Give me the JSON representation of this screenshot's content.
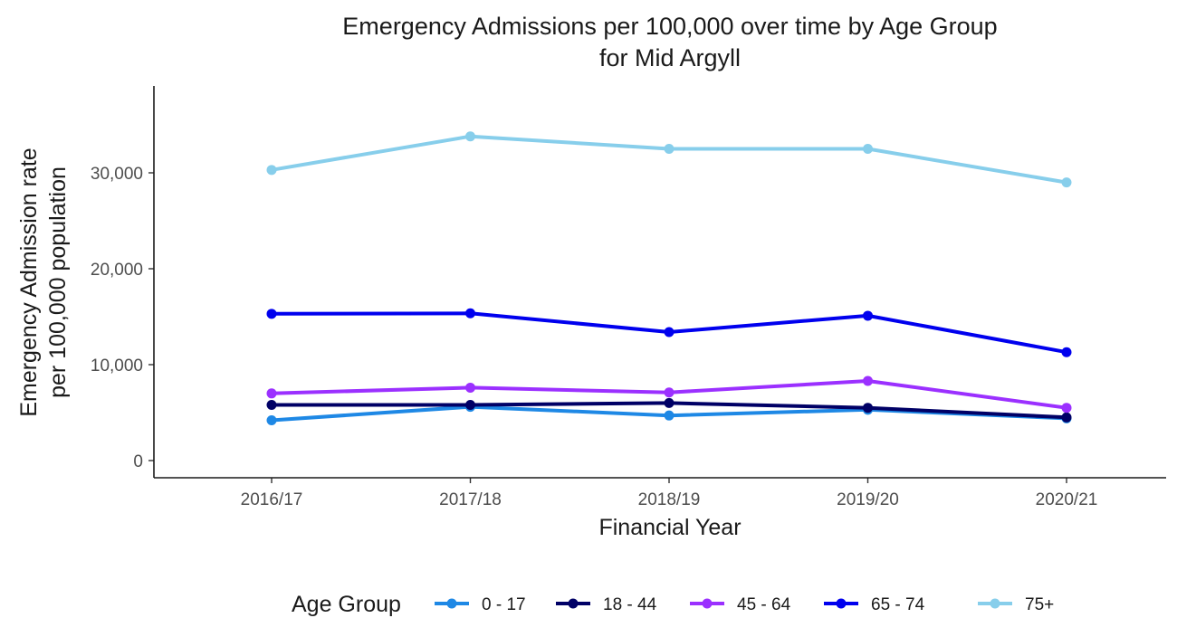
{
  "chart_data": {
    "type": "line",
    "title": [
      "Emergency Admissions per 100,000 over time by Age Group",
      "for Mid Argyll"
    ],
    "xlabel": "Financial Year",
    "ylabel": [
      "Emergency Admission rate",
      "per 100,000 population"
    ],
    "categories": [
      "2016/17",
      "2017/18",
      "2018/19",
      "2019/20",
      "2020/21"
    ],
    "ylim": [
      0,
      38000
    ],
    "yticks": [
      0,
      10000,
      20000,
      30000
    ],
    "ytick_labels": [
      "0",
      "10,000",
      "20,000",
      "30,000"
    ],
    "grid": false,
    "legend": {
      "title": "Age Group",
      "position": "bottom"
    },
    "series": [
      {
        "name": "0 - 17",
        "color": "#1E88E5",
        "values": [
          4200,
          5600,
          4700,
          5300,
          4400
        ]
      },
      {
        "name": "18 - 44",
        "color": "#000066",
        "values": [
          5800,
          5800,
          6000,
          5500,
          4500
        ]
      },
      {
        "name": "45 - 64",
        "color": "#9B30FF",
        "values": [
          7000,
          7600,
          7100,
          8300,
          5500
        ]
      },
      {
        "name": "65 - 74",
        "color": "#0000EE",
        "values": [
          15300,
          15350,
          13400,
          15100,
          11300
        ]
      },
      {
        "name": "75+",
        "color": "#87CEEB",
        "values": [
          30300,
          33800,
          32500,
          32500,
          29000
        ]
      }
    ]
  }
}
